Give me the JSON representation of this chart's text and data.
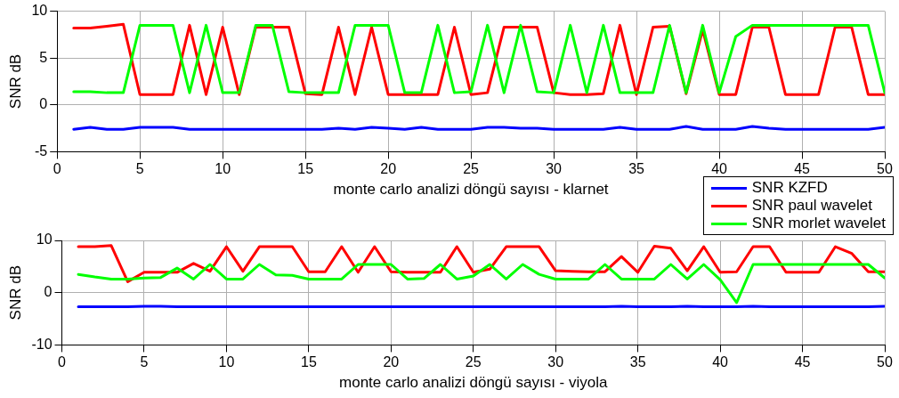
{
  "chart_data": [
    {
      "type": "line",
      "xlabel": "monte carlo analizi döngü sayısı - klarnet",
      "ylabel": "SNR dB",
      "x": [
        1,
        2,
        3,
        4,
        5,
        6,
        7,
        8,
        9,
        10,
        11,
        12,
        13,
        14,
        15,
        16,
        17,
        18,
        19,
        20,
        21,
        22,
        23,
        24,
        25,
        26,
        27,
        28,
        29,
        30,
        31,
        32,
        33,
        34,
        35,
        36,
        37,
        38,
        39,
        40,
        41,
        42,
        43,
        44,
        45,
        46,
        47,
        48,
        49,
        50
      ],
      "xlim": [
        0,
        50
      ],
      "xticks": [
        0,
        5,
        10,
        15,
        20,
        25,
        30,
        35,
        40,
        45,
        50
      ],
      "ylim": [
        -5,
        10
      ],
      "yticks": [
        -5,
        0,
        5,
        10
      ],
      "grid": true,
      "legend": "bottom right",
      "line_style": "solid",
      "series": [
        {
          "name": "SNR KZFD",
          "color": "#0000ff",
          "values": [
            -2.6,
            -2.4,
            -2.6,
            -2.6,
            -2.4,
            -2.4,
            -2.4,
            -2.6,
            -2.6,
            -2.6,
            -2.6,
            -2.6,
            -2.6,
            -2.6,
            -2.6,
            -2.6,
            -2.5,
            -2.6,
            -2.4,
            -2.5,
            -2.6,
            -2.4,
            -2.6,
            -2.6,
            -2.6,
            -2.4,
            -2.4,
            -2.5,
            -2.5,
            -2.6,
            -2.6,
            -2.6,
            -2.6,
            -2.4,
            -2.6,
            -2.6,
            -2.6,
            -2.3,
            -2.6,
            -2.6,
            -2.6,
            -2.3,
            -2.5,
            -2.6,
            -2.6,
            -2.6,
            -2.6,
            -2.6,
            -2.6,
            -2.4
          ]
        },
        {
          "name": "SNR paul wavelet",
          "color": "#ff0000",
          "values": [
            8.2,
            8.2,
            8.4,
            8.6,
            1.1,
            1.1,
            1.1,
            8.5,
            1.1,
            8.3,
            1.1,
            8.3,
            8.3,
            8.3,
            1.2,
            1.1,
            8.3,
            1.1,
            8.3,
            1.1,
            1.1,
            1.1,
            1.1,
            8.3,
            1.1,
            1.3,
            8.3,
            8.3,
            8.3,
            1.3,
            1.1,
            1.1,
            1.2,
            8.5,
            1.1,
            8.3,
            8.4,
            1.2,
            8.0,
            1.1,
            1.1,
            8.3,
            8.3,
            1.1,
            1.1,
            1.1,
            8.3,
            8.3,
            1.1,
            1.1
          ]
        },
        {
          "name": "SNR morlet wavelet",
          "color": "#00ff00",
          "values": [
            1.4,
            1.4,
            1.3,
            1.3,
            8.5,
            8.5,
            8.5,
            1.3,
            8.5,
            1.3,
            1.3,
            8.5,
            8.5,
            1.4,
            1.3,
            1.3,
            1.3,
            8.5,
            8.5,
            8.5,
            1.3,
            1.3,
            8.5,
            1.3,
            1.4,
            8.5,
            1.3,
            8.5,
            1.4,
            1.3,
            8.5,
            1.3,
            8.5,
            1.3,
            1.3,
            1.3,
            8.5,
            1.3,
            8.5,
            1.3,
            7.3,
            8.5,
            8.5,
            8.5,
            8.5,
            8.5,
            8.5,
            8.5,
            8.5,
            1.3
          ]
        }
      ]
    },
    {
      "type": "line",
      "xlabel": "monte carlo analizi döngü sayısı - viyola",
      "ylabel": "SNR dB",
      "x": [
        1,
        2,
        3,
        4,
        5,
        6,
        7,
        8,
        9,
        10,
        11,
        12,
        13,
        14,
        15,
        16,
        17,
        18,
        19,
        20,
        21,
        22,
        23,
        24,
        25,
        26,
        27,
        28,
        29,
        30,
        31,
        32,
        33,
        34,
        35,
        36,
        37,
        38,
        39,
        40,
        41,
        42,
        43,
        44,
        45,
        46,
        47,
        48,
        49,
        50
      ],
      "xlim": [
        0,
        50
      ],
      "xticks": [
        0,
        5,
        10,
        15,
        20,
        25,
        30,
        35,
        40,
        45,
        50
      ],
      "ylim": [
        -10,
        10
      ],
      "yticks": [
        -10,
        0,
        10
      ],
      "grid": true,
      "line_style": "solid",
      "series": [
        {
          "color": "#0000ff",
          "values": [
            -2.7,
            -2.7,
            -2.7,
            -2.7,
            -2.6,
            -2.6,
            -2.7,
            -2.7,
            -2.7,
            -2.7,
            -2.7,
            -2.7,
            -2.7,
            -2.7,
            -2.7,
            -2.7,
            -2.7,
            -2.7,
            -2.7,
            -2.7,
            -2.7,
            -2.7,
            -2.7,
            -2.7,
            -2.7,
            -2.7,
            -2.7,
            -2.7,
            -2.7,
            -2.7,
            -2.7,
            -2.7,
            -2.7,
            -2.6,
            -2.7,
            -2.7,
            -2.7,
            -2.6,
            -2.7,
            -2.7,
            -2.7,
            -2.6,
            -2.7,
            -2.7,
            -2.7,
            -2.7,
            -2.7,
            -2.7,
            -2.7,
            -2.6
          ]
        },
        {
          "color": "#ff0000",
          "values": [
            8.8,
            8.8,
            9.0,
            2.1,
            3.9,
            3.9,
            3.9,
            5.6,
            4.1,
            8.8,
            4.1,
            8.8,
            8.8,
            8.8,
            4.0,
            4.0,
            8.8,
            3.9,
            8.8,
            4.0,
            3.9,
            3.9,
            3.9,
            8.8,
            3.9,
            4.5,
            8.8,
            8.8,
            8.8,
            4.2,
            4.1,
            4.0,
            4.0,
            6.9,
            3.9,
            8.9,
            8.5,
            4.2,
            8.8,
            3.9,
            4.0,
            8.8,
            8.8,
            3.9,
            3.9,
            3.9,
            8.8,
            7.5,
            4.0,
            4.0
          ]
        },
        {
          "color": "#00ff00",
          "values": [
            3.5,
            3.0,
            2.6,
            2.6,
            2.8,
            2.9,
            4.7,
            2.6,
            5.4,
            2.6,
            2.6,
            5.4,
            3.4,
            3.3,
            2.6,
            2.6,
            2.6,
            5.4,
            5.4,
            5.4,
            2.6,
            2.7,
            5.4,
            2.6,
            3.2,
            5.4,
            2.6,
            5.4,
            3.5,
            2.6,
            2.6,
            2.6,
            5.4,
            2.6,
            2.6,
            2.6,
            5.4,
            2.6,
            5.4,
            2.5,
            -1.9,
            5.4,
            5.4,
            5.4,
            5.4,
            5.4,
            5.4,
            5.4,
            5.4,
            2.8
          ]
        }
      ]
    }
  ]
}
